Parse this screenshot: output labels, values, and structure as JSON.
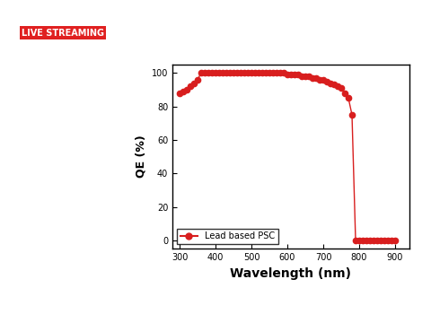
{
  "chart_data": {
    "type": "line",
    "x_label": "Wavelength (nm)",
    "y_label": "QE (%)",
    "annotations": [
      "LIVE STREAMING"
    ],
    "x": [
      300,
      310,
      320,
      330,
      340,
      350,
      360,
      370,
      380,
      390,
      400,
      410,
      420,
      430,
      440,
      450,
      460,
      470,
      480,
      490,
      500,
      510,
      520,
      530,
      540,
      550,
      560,
      570,
      580,
      590,
      600,
      610,
      620,
      630,
      640,
      650,
      660,
      670,
      680,
      690,
      700,
      710,
      720,
      730,
      740,
      750,
      760,
      770,
      780,
      790,
      800,
      810,
      820,
      830,
      840,
      850,
      860,
      870,
      880,
      890,
      900
    ],
    "series": [
      {
        "name": "Lead based PSC",
        "color": "#d81e1e",
        "marker": "o",
        "line_style": "solid",
        "values": [
          88,
          89,
          90,
          92,
          94,
          96,
          100,
          100,
          100,
          100,
          100,
          100,
          100,
          100,
          100,
          100,
          100,
          100,
          100,
          100,
          100,
          100,
          100,
          100,
          100,
          100,
          100,
          100,
          100,
          100,
          99,
          99,
          99,
          99,
          98,
          98,
          98,
          97,
          97,
          96,
          96,
          95,
          94,
          93,
          92,
          91,
          88,
          85,
          75,
          0,
          0,
          0,
          0,
          0,
          0,
          0,
          0,
          0,
          0,
          0,
          0
        ]
      }
    ],
    "xlim": [
      280,
      940
    ],
    "xticks": [
      300,
      400,
      500,
      600,
      700,
      800,
      900
    ],
    "ylim": [
      -5,
      105
    ],
    "yticks": [
      0,
      20,
      40,
      60,
      80,
      100
    ],
    "legend": "lower left",
    "grid": false
  }
}
